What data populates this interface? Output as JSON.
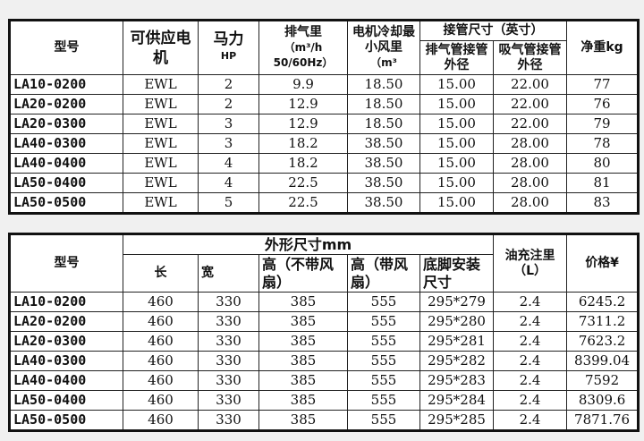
{
  "table1": {
    "headers": {
      "model": "型号",
      "motor": "可供应电机",
      "hp": "马力",
      "hp_unit": "HP",
      "displacement": "排气里",
      "displacement_unit": "（m³/h 50/60Hz）",
      "cooling": "电机冷却最小风里",
      "cooling_unit": "（m³",
      "pipe": "接管尺寸（英寸）",
      "exhaust": "排气管接管外径",
      "suction": "吸气管接管外径",
      "weight": "净重kg"
    },
    "rows": [
      [
        "LA10-0200",
        "EWL",
        "2",
        "9.9",
        "18.50",
        "15.00",
        "22.00",
        "77"
      ],
      [
        "LA20-0200",
        "EWL",
        "2",
        "12.9",
        "18.50",
        "15.00",
        "22.00",
        "76"
      ],
      [
        "LA20-0300",
        "EWL",
        "3",
        "12.9",
        "18.50",
        "15.00",
        "22.00",
        "79"
      ],
      [
        "LA40-0300",
        "EWL",
        "3",
        "18.2",
        "38.50",
        "15.00",
        "28.00",
        "78"
      ],
      [
        "LA40-0400",
        "EWL",
        "4",
        "18.2",
        "38.50",
        "15.00",
        "28.00",
        "80"
      ],
      [
        "LA50-0400",
        "EWL",
        "4",
        "22.5",
        "38.50",
        "15.00",
        "28.00",
        "81"
      ],
      [
        "LA50-0500",
        "EWL",
        "5",
        "22.5",
        "38.50",
        "15.00",
        "28.00",
        "83"
      ]
    ]
  },
  "table2": {
    "headers": {
      "model": "型号",
      "dims": "外形尺寸mm",
      "length": "长",
      "width": "宽",
      "h_nofan": "高（不带风扇）",
      "h_fan": "高（带风扇）",
      "foot": "底脚安装尺寸",
      "oil": "油充注里（L）",
      "price": "价格¥"
    },
    "rows": [
      [
        "LA10-0200",
        "460",
        "330",
        "385",
        "555",
        "295*279",
        "2.4",
        "6245.2"
      ],
      [
        "LA20-0200",
        "460",
        "330",
        "385",
        "555",
        "295*280",
        "2.4",
        "7311.2"
      ],
      [
        "LA20-0300",
        "460",
        "330",
        "385",
        "555",
        "295*281",
        "2.4",
        "7623.2"
      ],
      [
        "LA40-0300",
        "460",
        "330",
        "385",
        "555",
        "295*282",
        "2.4",
        "8399.04"
      ],
      [
        "LA40-0400",
        "460",
        "330",
        "385",
        "555",
        "295*283",
        "2.4",
        "7592"
      ],
      [
        "LA50-0400",
        "460",
        "330",
        "385",
        "555",
        "295*284",
        "2.4",
        "8309.6"
      ],
      [
        "LA50-0500",
        "460",
        "330",
        "385",
        "555",
        "295*285",
        "2.4",
        "7871.76"
      ]
    ]
  }
}
